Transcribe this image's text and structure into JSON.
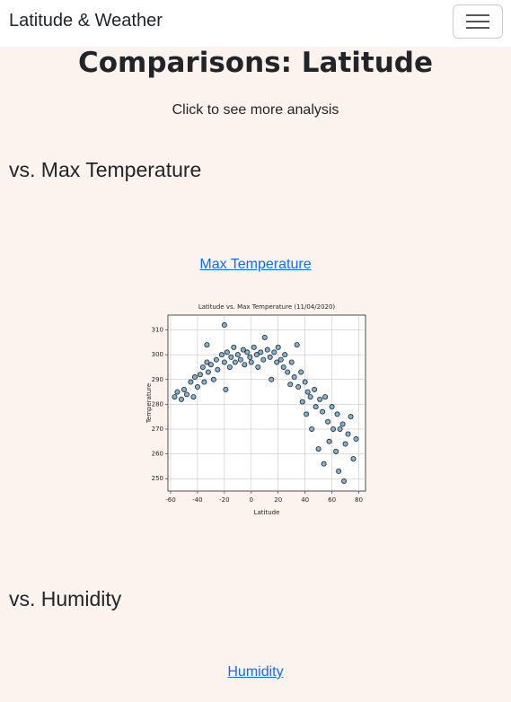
{
  "navbar": {
    "brand": "Latitude & Weather"
  },
  "header": {
    "title": "Comparisons: Latitude",
    "subtitle": "Click to see more analysis"
  },
  "sections": [
    {
      "heading": "vs. Max Temperature",
      "link": "Max Temperature"
    },
    {
      "heading": "vs. Humidity",
      "link": "Humidity"
    }
  ],
  "chart_data": {
    "type": "scatter",
    "title": "Latitude vs. Max Temperature (11/04/2020)",
    "x_label": "Latitude",
    "y_label": "Temperature",
    "color": "#7fb3d5",
    "grid": true,
    "xlim": [
      -62,
      85
    ],
    "xticks": [
      -60,
      -40,
      -20,
      0,
      20,
      40,
      60,
      80
    ],
    "ylim": [
      245,
      316
    ],
    "yticks": [
      250,
      260,
      270,
      280,
      290,
      300,
      310
    ],
    "x": [
      -57,
      -55,
      -52,
      -50,
      -48,
      -45,
      -43,
      -42,
      -40,
      -38,
      -36,
      -35,
      -33,
      -32,
      -30,
      -28,
      -26,
      -25,
      -22,
      -20,
      -19,
      -18,
      -16,
      -15,
      -13,
      -12,
      -10,
      -8,
      -6,
      -5,
      -3,
      -1,
      0,
      2,
      4,
      5,
      7,
      9,
      10,
      12,
      14,
      15,
      17,
      19,
      20,
      22,
      24,
      25,
      27,
      29,
      30,
      32,
      34,
      35,
      37,
      38,
      40,
      41,
      42,
      44,
      45,
      47,
      48,
      50,
      51,
      53,
      54,
      55,
      57,
      58,
      60,
      61,
      63,
      64,
      65,
      66,
      68,
      69,
      70,
      72,
      74,
      76,
      78,
      -20,
      -33
    ],
    "y": [
      283,
      285,
      282,
      286,
      284,
      289,
      283,
      291,
      287,
      292,
      295,
      289,
      297,
      293,
      296,
      290,
      298,
      294,
      300,
      297,
      286,
      301,
      295,
      299,
      303,
      297,
      300,
      298,
      302,
      296,
      301,
      299,
      297,
      303,
      300,
      295,
      301,
      298,
      307,
      302,
      299,
      290,
      301,
      297,
      303,
      298,
      295,
      300,
      293,
      288,
      297,
      291,
      304,
      287,
      293,
      281,
      289,
      276,
      285,
      283,
      270,
      286,
      279,
      262,
      282,
      277,
      256,
      283,
      273,
      265,
      279,
      270,
      261,
      276,
      253,
      270,
      272,
      249,
      264,
      268,
      275,
      258,
      266,
      312,
      304
    ]
  }
}
